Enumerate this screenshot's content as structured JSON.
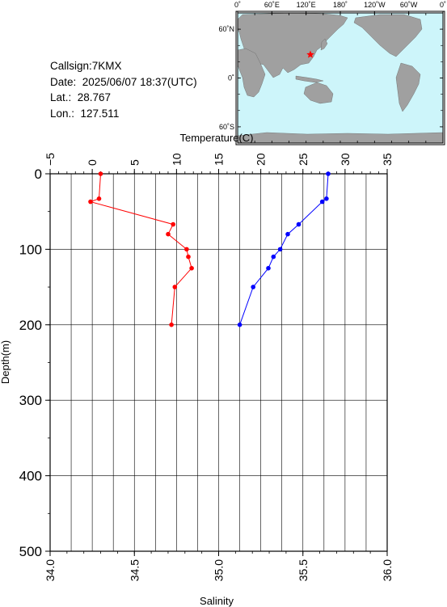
{
  "info": {
    "callsign": "Callsign:7KMX",
    "date": "Date:  2025/06/07 18:37(UTC)",
    "lat": "Lat.:  28.767",
    "lon": "Lon.:  127.511"
  },
  "map": {
    "top_ticks": [
      "0˚",
      "60˚E",
      "120˚E",
      "180˚",
      "120˚W",
      "60˚W",
      "0˚"
    ],
    "side_ticks": [
      "60˚N",
      "0˚",
      "60˚S"
    ],
    "station": {
      "lat": 28.767,
      "lon": 127.511
    },
    "colors": {
      "ocean": "#cdf5fa",
      "land": "#a0a0a0",
      "marker": "#ff0000"
    }
  },
  "chart_data": {
    "type": "line",
    "x_top_label": "Temperature(C)",
    "x_bottom_label": "Salinity",
    "ylabel": "Depth(m)",
    "temperature_range": [
      -5,
      35
    ],
    "salinity_range": [
      34.0,
      36.0
    ],
    "depth_range": [
      0,
      500
    ],
    "temperature_ticks": [
      "−5",
      "0",
      "5",
      "10",
      "15",
      "20",
      "25",
      "30",
      "35"
    ],
    "salinity_ticks": [
      "34.0",
      "34.5",
      "35.0",
      "35.5",
      "36.0"
    ],
    "depth_ticks": [
      "0",
      "100",
      "200",
      "300",
      "400",
      "500"
    ],
    "series": [
      {
        "name": "Temperature",
        "color": "#ff0000",
        "points": [
          {
            "depth": 0,
            "value": 28.0
          },
          {
            "depth": 33,
            "value": 27.8
          },
          {
            "depth": 37,
            "value": 27.3
          },
          {
            "depth": 67,
            "value": 24.5
          },
          {
            "depth": 80,
            "value": 23.2
          },
          {
            "depth": 100,
            "value": 22.3
          },
          {
            "depth": 110,
            "value": 21.5
          },
          {
            "depth": 125,
            "value": 20.9
          },
          {
            "depth": 150,
            "value": 19.1
          },
          {
            "depth": 200,
            "value": 17.5
          }
        ]
      },
      {
        "name": "Salinity",
        "color": "#ff0000",
        "points": [
          {
            "depth": 0,
            "value": 34.3
          },
          {
            "depth": 33,
            "value": 34.29
          },
          {
            "depth": 37,
            "value": 34.24
          },
          {
            "depth": 67,
            "value": 34.73
          },
          {
            "depth": 80,
            "value": 34.7
          },
          {
            "depth": 100,
            "value": 34.81
          },
          {
            "depth": 110,
            "value": 34.82
          },
          {
            "depth": 125,
            "value": 34.84
          },
          {
            "depth": 150,
            "value": 34.74
          },
          {
            "depth": 200,
            "value": 34.72
          }
        ]
      }
    ]
  }
}
